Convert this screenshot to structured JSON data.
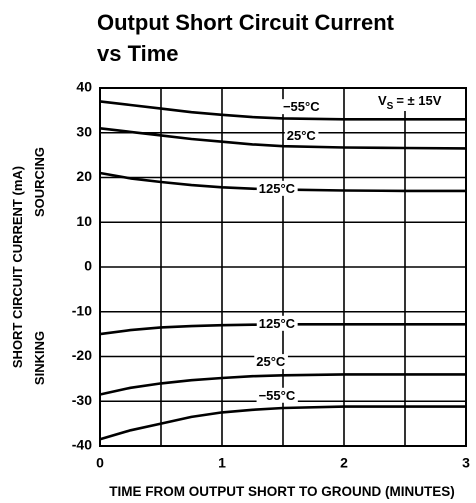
{
  "chart_data": {
    "type": "line",
    "title": [
      "Output Short Circuit Current",
      "vs Time"
    ],
    "xlabel": "TIME FROM OUTPUT SHORT TO GROUND (MINUTES)",
    "ylabel": "SHORT CIRCUIT CURRENT (mA)",
    "region_labels": {
      "upper": "SOURCING",
      "lower": "SINKING"
    },
    "annotation": {
      "symbol": "V",
      "subscript": "S",
      "text": "= ± 15V"
    },
    "x": [
      0,
      0.25,
      0.5,
      0.75,
      1,
      1.25,
      1.5,
      2,
      2.5,
      3
    ],
    "xlim": [
      0,
      3
    ],
    "xticks": [
      0,
      1,
      2,
      3
    ],
    "x_minor_ticks": [
      0.5,
      1.5,
      2.5
    ],
    "ylim": [
      -40,
      40
    ],
    "yticks": [
      -40,
      -30,
      -20,
      -10,
      0,
      10,
      20,
      30,
      40
    ],
    "grid": true,
    "series": [
      {
        "name": "−55°C",
        "color": "#000000",
        "values": [
          37,
          36.2,
          35.4,
          34.6,
          34,
          33.5,
          33.2,
          33,
          33,
          33
        ]
      },
      {
        "name": "25°C",
        "color": "#000000",
        "values": [
          31,
          30.2,
          29.4,
          28.6,
          28,
          27.4,
          27,
          26.7,
          26.6,
          26.5
        ]
      },
      {
        "name": "125°C",
        "color": "#000000",
        "values": [
          21,
          19.8,
          19,
          18.3,
          17.8,
          17.5,
          17.3,
          17.1,
          17,
          17
        ]
      },
      {
        "name": "125°C",
        "color": "#000000",
        "values": [
          -15,
          -14.1,
          -13.5,
          -13.2,
          -13,
          -12.9,
          -12.8,
          -12.8,
          -12.8,
          -12.8
        ]
      },
      {
        "name": "25°C",
        "color": "#000000",
        "values": [
          -28.5,
          -27,
          -26,
          -25.3,
          -24.8,
          -24.4,
          -24.2,
          -24,
          -24,
          -24
        ]
      },
      {
        "name": "−55°C",
        "color": "#000000",
        "values": [
          -38.5,
          -36.5,
          -35,
          -33.5,
          -32.5,
          -31.9,
          -31.5,
          -31.2,
          -31.2,
          -31.2
        ]
      }
    ]
  }
}
